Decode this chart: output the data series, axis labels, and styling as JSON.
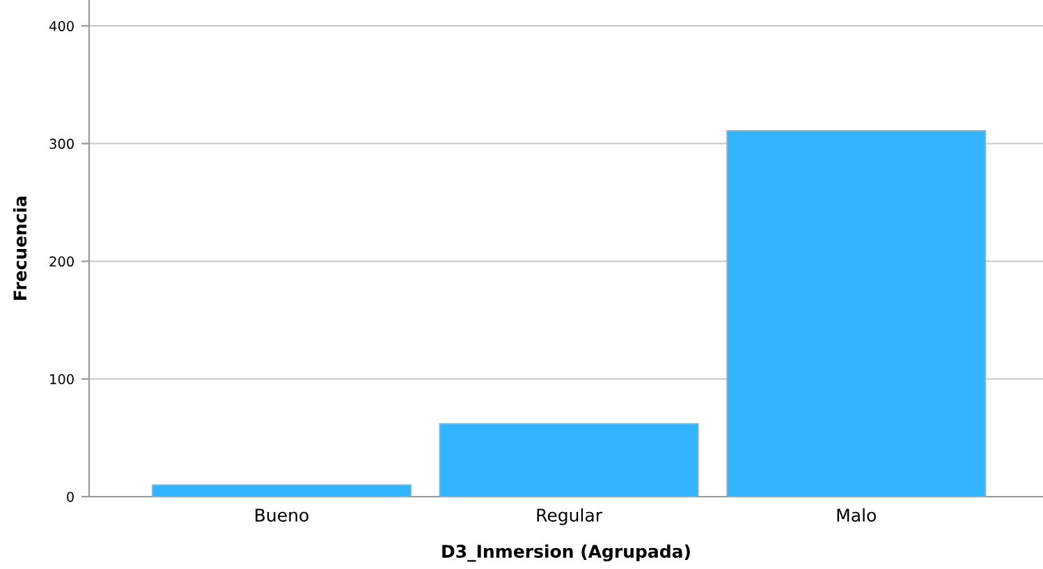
{
  "chart_data": {
    "type": "bar",
    "xlabel": "D3_Inmersion (Agrupada)",
    "ylabel": "Frecuencia",
    "categories": [
      "Bueno",
      "Regular",
      "Malo"
    ],
    "values": [
      10,
      62,
      311
    ],
    "color": "#33b4ff",
    "ylim": [
      0,
      422
    ],
    "yticks": [
      0,
      100,
      200,
      300,
      400
    ],
    "grid": "y"
  }
}
